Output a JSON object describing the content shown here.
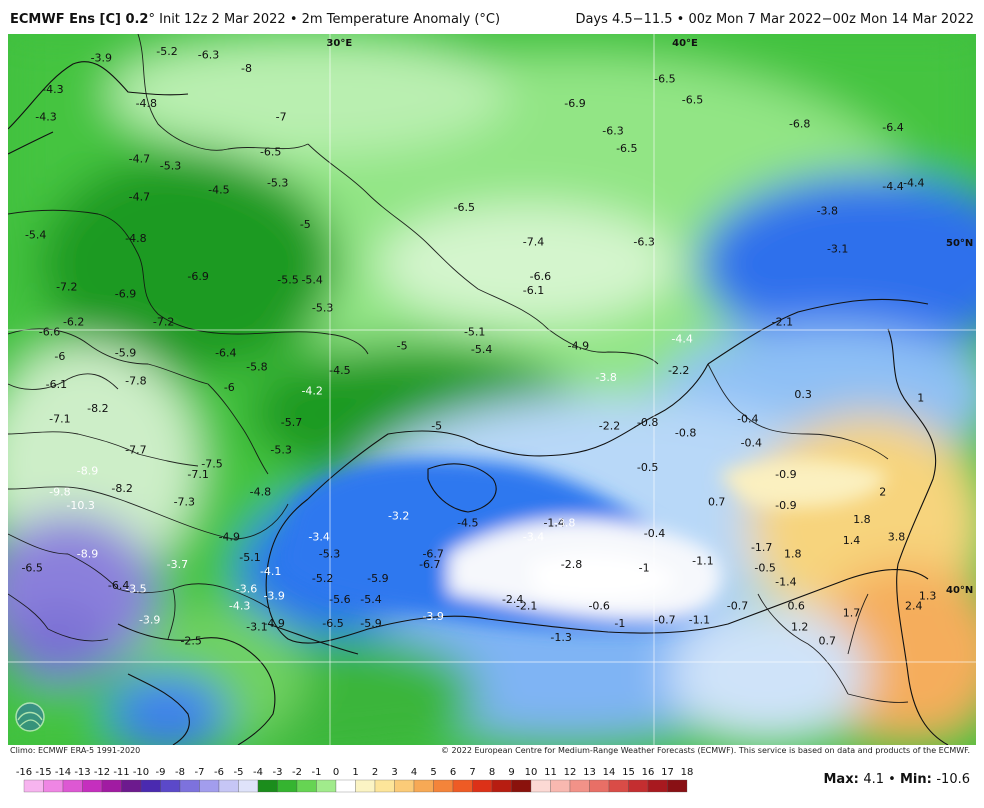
{
  "header": {
    "model": "ECMWF Ens [C] 0.2",
    "deg": "°",
    "init": "Init 12z 2 Mar 2022",
    "sep": "•",
    "variable": "2m Temperature Anomaly (°C)",
    "range": "Days 4.5−11.5 • 00z Mon 7 Mar 2022−00z Mon 14 Mar 2022"
  },
  "footer": {
    "climo": "Climo: ECMWF ERA-5 1991-2020",
    "copyright": "© 2022 European Centre for Medium-Range Weather Forecasts (ECMWF). This service is based on data and products of the ECMWF."
  },
  "stats": {
    "max_label": "Max",
    "max": "4.1",
    "min_label": "Min",
    "min": "-10.6"
  },
  "graticule": [
    {
      "text": "30°E",
      "lon": 30
    },
    {
      "text": "40°E",
      "lon": 40
    },
    {
      "text": "50°N",
      "lat": 50
    },
    {
      "text": "40°N",
      "lat": 40
    }
  ],
  "colorbar": {
    "labels": [
      "-16",
      "-15",
      "-14",
      "-13",
      "-12",
      "-11",
      "-10",
      "-9",
      "-8",
      "-7",
      "-6",
      "-5",
      "-4",
      "-3",
      "-2",
      "-1",
      "0",
      "1",
      "2",
      "3",
      "4",
      "5",
      "6",
      "7",
      "8",
      "9",
      "10",
      "11",
      "12",
      "13",
      "14",
      "15",
      "16",
      "17",
      "18"
    ],
    "colors": [
      "#f7b4ef",
      "#ef86e4",
      "#dd58d3",
      "#c52fbe",
      "#a11ba2",
      "#6d1a8e",
      "#4a2ab0",
      "#5b49c9",
      "#7d72dd",
      "#a29ded",
      "#c6c6f5",
      "#dfe3fa",
      "#1b8d1c",
      "#35b430",
      "#66d453",
      "#a1eb8c",
      "#ffffff",
      "#fbf4c4",
      "#fde59a",
      "#fbcb78",
      "#f7a955",
      "#f4843a",
      "#ee5b25",
      "#dc3118",
      "#b71d11",
      "#8a120c",
      "#fcd9d4",
      "#f8b8b0",
      "#f29288",
      "#e86f66",
      "#d94c47",
      "#c42e30",
      "#a8191f",
      "#891014"
    ],
    "anomaly_colors": [
      "#7872d8",
      "#a09be9",
      "#c4c2f1",
      "#e2e7f8",
      "#f4f6fb",
      "#ffffff",
      "#1e7f1e",
      "#3aa83a",
      "#63cf58",
      "#98e88b",
      "#c8f3bf",
      "#e2f7dc",
      "#2a6ff2",
      "#4d8ff5",
      "#79b0f7",
      "#a7cdf8",
      "#d1e5fa",
      "#eef3f9"
    ]
  },
  "chart_data": {
    "type": "heatmap",
    "title": "ECMWF Ens [C] 0.2° Init 12z 2 Mar 2022 • 2m Temperature Anomaly (°C)",
    "subtitle": "Days 4.5−11.5 • 00z Mon 7 Mar 2022−00z Mon 14 Mar 2022",
    "units": "°C",
    "lon_range": [
      20.5,
      48.5
    ],
    "lat_range": [
      35.5,
      56
    ],
    "max": 4.1,
    "min": -10.6,
    "values": [
      {
        "lon": 23.2,
        "lat": 55.2,
        "v": -3.9
      },
      {
        "lon": 25.1,
        "lat": 55.4,
        "v": -5.2
      },
      {
        "lon": 26.3,
        "lat": 55.3,
        "v": -6.3
      },
      {
        "lon": 27.4,
        "lat": 54.9,
        "v": -8.0
      },
      {
        "lon": 21.8,
        "lat": 54.3,
        "v": -4.3
      },
      {
        "lon": 24.5,
        "lat": 53.9,
        "v": -4.8
      },
      {
        "lon": 21.6,
        "lat": 53.5,
        "v": -4.3
      },
      {
        "lon": 28.4,
        "lat": 53.5,
        "v": -7.0
      },
      {
        "lon": 36.9,
        "lat": 53.9,
        "v": -6.9
      },
      {
        "lon": 39.5,
        "lat": 54.6,
        "v": -6.5
      },
      {
        "lon": 40.3,
        "lat": 54.0,
        "v": -6.5
      },
      {
        "lon": 43.4,
        "lat": 53.3,
        "v": -6.8
      },
      {
        "lon": 46.1,
        "lat": 53.2,
        "v": -6.4
      },
      {
        "lon": 38.0,
        "lat": 53.1,
        "v": -6.3
      },
      {
        "lon": 38.4,
        "lat": 52.6,
        "v": -6.5
      },
      {
        "lon": 24.3,
        "lat": 52.3,
        "v": -4.7
      },
      {
        "lon": 25.2,
        "lat": 52.1,
        "v": -5.3
      },
      {
        "lon": 28.1,
        "lat": 52.5,
        "v": -6.5
      },
      {
        "lon": 26.6,
        "lat": 51.4,
        "v": -4.5
      },
      {
        "lon": 28.3,
        "lat": 51.6,
        "v": -5.3
      },
      {
        "lon": 24.3,
        "lat": 51.2,
        "v": -4.7
      },
      {
        "lon": 46.1,
        "lat": 51.5,
        "v": -4.4
      },
      {
        "lon": 46.7,
        "lat": 51.6,
        "v": -4.4
      },
      {
        "lon": 44.2,
        "lat": 50.8,
        "v": -3.8
      },
      {
        "lon": 33.7,
        "lat": 50.9,
        "v": -6.5
      },
      {
        "lon": 21.3,
        "lat": 50.1,
        "v": -5.4
      },
      {
        "lon": 24.2,
        "lat": 50.0,
        "v": -4.8
      },
      {
        "lon": 29.1,
        "lat": 50.4,
        "v": -5.0
      },
      {
        "lon": 35.7,
        "lat": 49.9,
        "v": -7.4
      },
      {
        "lon": 38.9,
        "lat": 49.9,
        "v": -6.3
      },
      {
        "lon": 44.5,
        "lat": 49.7,
        "v": -3.1
      },
      {
        "lon": 26.0,
        "lat": 48.9,
        "v": -6.9
      },
      {
        "lon": 28.6,
        "lat": 48.8,
        "v": -5.5
      },
      {
        "lon": 29.3,
        "lat": 48.8,
        "v": -5.4
      },
      {
        "lon": 35.9,
        "lat": 48.9,
        "v": -6.6
      },
      {
        "lon": 35.7,
        "lat": 48.5,
        "v": -6.1
      },
      {
        "lon": 22.2,
        "lat": 48.6,
        "v": -7.2
      },
      {
        "lon": 23.9,
        "lat": 48.4,
        "v": -6.9
      },
      {
        "lon": 29.6,
        "lat": 48.0,
        "v": -5.3
      },
      {
        "lon": 22.4,
        "lat": 47.6,
        "v": -6.2
      },
      {
        "lon": 25.0,
        "lat": 47.6,
        "v": -7.2
      },
      {
        "lon": 21.7,
        "lat": 47.3,
        "v": -6.6
      },
      {
        "lon": 34.0,
        "lat": 47.3,
        "v": -5.1
      },
      {
        "lon": 42.9,
        "lat": 47.6,
        "v": -2.1
      },
      {
        "lon": 40.0,
        "lat": 47.1,
        "v": -4.4
      },
      {
        "lon": 31.9,
        "lat": 46.9,
        "v": -5.0
      },
      {
        "lon": 34.2,
        "lat": 46.8,
        "v": -5.4
      },
      {
        "lon": 37.0,
        "lat": 46.9,
        "v": -4.9
      },
      {
        "lon": 22.0,
        "lat": 46.6,
        "v": -6.0
      },
      {
        "lon": 23.9,
        "lat": 46.7,
        "v": -5.9
      },
      {
        "lon": 26.8,
        "lat": 46.7,
        "v": -6.4
      },
      {
        "lon": 27.7,
        "lat": 46.3,
        "v": -5.8
      },
      {
        "lon": 30.1,
        "lat": 46.2,
        "v": -4.5
      },
      {
        "lon": 37.8,
        "lat": 46.0,
        "v": -3.8
      },
      {
        "lon": 39.9,
        "lat": 46.2,
        "v": -2.2
      },
      {
        "lon": 21.9,
        "lat": 45.8,
        "v": -6.1
      },
      {
        "lon": 24.2,
        "lat": 45.9,
        "v": -7.8
      },
      {
        "lon": 26.9,
        "lat": 45.7,
        "v": -6.0
      },
      {
        "lon": 29.3,
        "lat": 45.6,
        "v": -4.2
      },
      {
        "lon": 43.5,
        "lat": 45.5,
        "v": 0.3
      },
      {
        "lon": 46.9,
        "lat": 45.4,
        "v": 1.0
      },
      {
        "lon": 23.1,
        "lat": 45.1,
        "v": -8.2
      },
      {
        "lon": 22.0,
        "lat": 44.8,
        "v": -7.1
      },
      {
        "lon": 28.7,
        "lat": 44.7,
        "v": -5.7
      },
      {
        "lon": 32.9,
        "lat": 44.6,
        "v": -5.0
      },
      {
        "lon": 37.9,
        "lat": 44.6,
        "v": -2.2
      },
      {
        "lon": 39.0,
        "lat": 44.7,
        "v": -0.8
      },
      {
        "lon": 40.1,
        "lat": 44.4,
        "v": -0.8
      },
      {
        "lon": 41.9,
        "lat": 44.8,
        "v": -0.4
      },
      {
        "lon": 42.0,
        "lat": 44.1,
        "v": -0.4
      },
      {
        "lon": 24.2,
        "lat": 43.9,
        "v": -7.7
      },
      {
        "lon": 28.4,
        "lat": 43.9,
        "v": -5.3
      },
      {
        "lon": 26.4,
        "lat": 43.5,
        "v": -7.5
      },
      {
        "lon": 22.8,
        "lat": 43.3,
        "v": -8.9
      },
      {
        "lon": 26.0,
        "lat": 43.2,
        "v": -7.1
      },
      {
        "lon": 39.0,
        "lat": 43.4,
        "v": -0.5
      },
      {
        "lon": 43.0,
        "lat": 43.2,
        "v": -0.9
      },
      {
        "lon": 22.0,
        "lat": 42.7,
        "v": -9.8
      },
      {
        "lon": 23.8,
        "lat": 42.8,
        "v": -8.2
      },
      {
        "lon": 27.8,
        "lat": 42.7,
        "v": -4.8
      },
      {
        "lon": 22.6,
        "lat": 42.3,
        "v": -10.3
      },
      {
        "lon": 25.6,
        "lat": 42.4,
        "v": -7.3
      },
      {
        "lon": 41.0,
        "lat": 42.4,
        "v": 0.7
      },
      {
        "lon": 43.0,
        "lat": 42.3,
        "v": -0.9
      },
      {
        "lon": 45.8,
        "lat": 42.7,
        "v": 2.0
      },
      {
        "lon": 31.8,
        "lat": 42.0,
        "v": -3.2
      },
      {
        "lon": 33.8,
        "lat": 41.8,
        "v": -4.5
      },
      {
        "lon": 36.3,
        "lat": 41.8,
        "v": -1.4
      },
      {
        "lon": 36.6,
        "lat": 41.8,
        "v": -3.8
      },
      {
        "lon": 45.2,
        "lat": 41.9,
        "v": 1.8
      },
      {
        "lon": 29.5,
        "lat": 41.4,
        "v": -3.4
      },
      {
        "lon": 35.7,
        "lat": 41.4,
        "v": -3.4
      },
      {
        "lon": 39.2,
        "lat": 41.5,
        "v": -0.4
      },
      {
        "lon": 26.9,
        "lat": 41.4,
        "v": -4.9
      },
      {
        "lon": 44.9,
        "lat": 41.3,
        "v": 1.4
      },
      {
        "lon": 46.2,
        "lat": 41.4,
        "v": 3.8
      },
      {
        "lon": 42.3,
        "lat": 41.1,
        "v": -1.7
      },
      {
        "lon": 22.8,
        "lat": 40.9,
        "v": -8.9
      },
      {
        "lon": 27.5,
        "lat": 40.8,
        "v": -5.1
      },
      {
        "lon": 29.8,
        "lat": 40.9,
        "v": -5.3
      },
      {
        "lon": 32.8,
        "lat": 40.9,
        "v": -6.7
      },
      {
        "lon": 43.2,
        "lat": 40.9,
        "v": 1.8
      },
      {
        "lon": 25.4,
        "lat": 40.6,
        "v": -3.7
      },
      {
        "lon": 28.1,
        "lat": 40.4,
        "v": -4.1
      },
      {
        "lon": 32.7,
        "lat": 40.6,
        "v": -6.7
      },
      {
        "lon": 36.8,
        "lat": 40.6,
        "v": -2.8
      },
      {
        "lon": 38.9,
        "lat": 40.5,
        "v": -1.0
      },
      {
        "lon": 40.6,
        "lat": 40.7,
        "v": -1.1
      },
      {
        "lon": 42.4,
        "lat": 40.5,
        "v": -0.5
      },
      {
        "lon": 21.2,
        "lat": 40.5,
        "v": -6.5
      },
      {
        "lon": 29.6,
        "lat": 40.2,
        "v": -5.2
      },
      {
        "lon": 31.2,
        "lat": 40.2,
        "v": -5.9
      },
      {
        "lon": 43.0,
        "lat": 40.1,
        "v": -1.4
      },
      {
        "lon": 47.1,
        "lat": 39.7,
        "v": 1.3
      },
      {
        "lon": 23.7,
        "lat": 40.0,
        "v": -6.4
      },
      {
        "lon": 24.2,
        "lat": 39.9,
        "v": -3.5
      },
      {
        "lon": 27.4,
        "lat": 39.9,
        "v": -3.6
      },
      {
        "lon": 28.2,
        "lat": 39.7,
        "v": -3.9
      },
      {
        "lon": 30.1,
        "lat": 39.6,
        "v": -5.6
      },
      {
        "lon": 31.0,
        "lat": 39.6,
        "v": -5.4
      },
      {
        "lon": 35.1,
        "lat": 39.6,
        "v": -2.4
      },
      {
        "lon": 27.2,
        "lat": 39.4,
        "v": -4.3
      },
      {
        "lon": 35.5,
        "lat": 39.4,
        "v": -2.1
      },
      {
        "lon": 37.6,
        "lat": 39.4,
        "v": -0.6
      },
      {
        "lon": 41.6,
        "lat": 39.4,
        "v": -0.7
      },
      {
        "lon": 43.3,
        "lat": 39.4,
        "v": 0.6
      },
      {
        "lon": 44.9,
        "lat": 39.2,
        "v": 1.7
      },
      {
        "lon": 46.7,
        "lat": 39.4,
        "v": 2.4
      },
      {
        "lon": 24.6,
        "lat": 39.0,
        "v": -3.9
      },
      {
        "lon": 28.2,
        "lat": 38.9,
        "v": -4.9
      },
      {
        "lon": 29.9,
        "lat": 38.9,
        "v": -6.5
      },
      {
        "lon": 31.0,
        "lat": 38.9,
        "v": -5.9
      },
      {
        "lon": 32.8,
        "lat": 39.1,
        "v": -3.9
      },
      {
        "lon": 38.2,
        "lat": 38.9,
        "v": -1.0
      },
      {
        "lon": 39.5,
        "lat": 39.0,
        "v": -0.7
      },
      {
        "lon": 40.5,
        "lat": 39.0,
        "v": -1.1
      },
      {
        "lon": 43.4,
        "lat": 38.8,
        "v": 1.2
      },
      {
        "lon": 25.8,
        "lat": 38.4,
        "v": -2.5
      },
      {
        "lon": 27.7,
        "lat": 38.8,
        "v": -3.1
      },
      {
        "lon": 36.5,
        "lat": 38.5,
        "v": -1.3
      },
      {
        "lon": 44.2,
        "lat": 38.4,
        "v": 0.7
      }
    ]
  }
}
